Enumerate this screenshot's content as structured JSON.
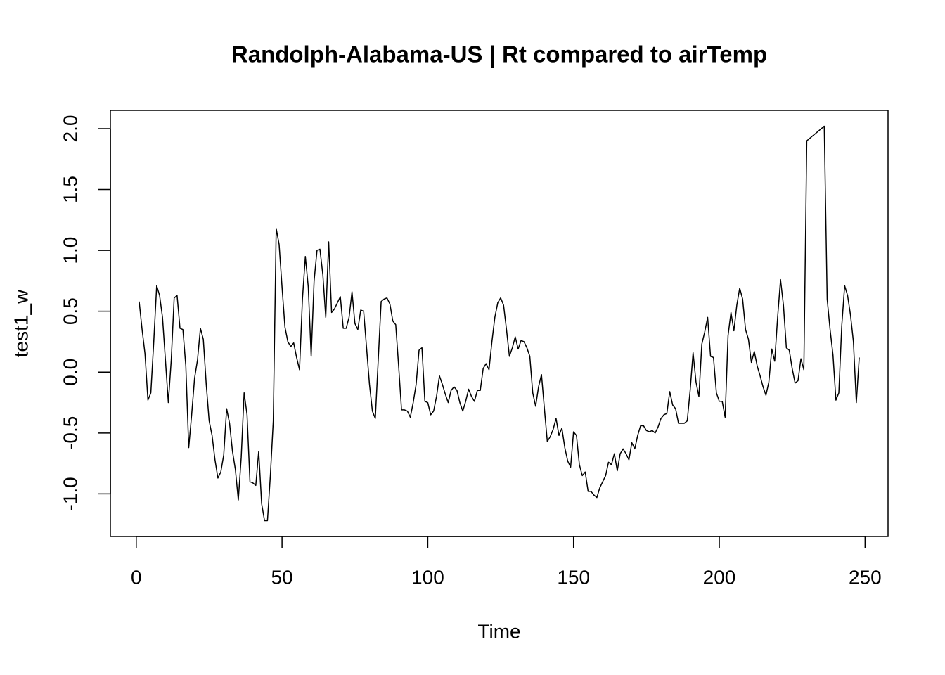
{
  "chart_data": {
    "type": "line",
    "title": "Randolph-Alabama-US | Rt compared to airTemp",
    "x_label": "Time",
    "y_label": "test1_w",
    "x": [
      1,
      2,
      3,
      4,
      5,
      6,
      7,
      8,
      9,
      10,
      11,
      12,
      13,
      14,
      15,
      16,
      17,
      18,
      19,
      20,
      21,
      22,
      23,
      24,
      25,
      26,
      27,
      28,
      29,
      30,
      31,
      32,
      33,
      34,
      35,
      36,
      37,
      38,
      39,
      40,
      41,
      42,
      43,
      44,
      45,
      46,
      47,
      48,
      49,
      50,
      51,
      52,
      53,
      54,
      55,
      56,
      57,
      58,
      59,
      60,
      61,
      62,
      63,
      64,
      65,
      66,
      67,
      68,
      69,
      70,
      71,
      72,
      73,
      74,
      75,
      76,
      77,
      78,
      79,
      80,
      81,
      82,
      83,
      84,
      85,
      86,
      87,
      88,
      89,
      90,
      91,
      92,
      93,
      94,
      95,
      96,
      97,
      98,
      99,
      100,
      101,
      102,
      103,
      104,
      105,
      106,
      107,
      108,
      109,
      110,
      111,
      112,
      113,
      114,
      115,
      116,
      117,
      118,
      119,
      120,
      121,
      122,
      123,
      124,
      125,
      126,
      127,
      128,
      129,
      130,
      131,
      132,
      133,
      134,
      135,
      136,
      137,
      138,
      139,
      140,
      141,
      142,
      143,
      144,
      145,
      146,
      147,
      148,
      149,
      150,
      151,
      152,
      153,
      154,
      155,
      156,
      157,
      158,
      159,
      160,
      161,
      162,
      163,
      164,
      165,
      166,
      167,
      168,
      169,
      170,
      171,
      172,
      173,
      174,
      175,
      176,
      177,
      178,
      179,
      180,
      181,
      182,
      183,
      184,
      185,
      186,
      187,
      188,
      189,
      190,
      191,
      192,
      193,
      194,
      195,
      196,
      197,
      198,
      199,
      200,
      201,
      202,
      203,
      204,
      205,
      206,
      207,
      208,
      209,
      210,
      211,
      212,
      213,
      214,
      215,
      216,
      217,
      218,
      219,
      220,
      221,
      222,
      223,
      224,
      225,
      226,
      227,
      228,
      229,
      230,
      231,
      232,
      233,
      234,
      235,
      236,
      237,
      238,
      239,
      240,
      241,
      242,
      243,
      244,
      245,
      246,
      247,
      248
    ],
    "series": [
      {
        "name": "test1_w",
        "color": "#000000",
        "values": [
          0.58,
          0.35,
          0.15,
          -0.23,
          -0.17,
          0.25,
          0.71,
          0.63,
          0.45,
          0.1,
          -0.25,
          0.1,
          0.61,
          0.63,
          0.36,
          0.35,
          0.05,
          -0.62,
          -0.35,
          -0.05,
          0.1,
          0.36,
          0.27,
          -0.1,
          -0.4,
          -0.52,
          -0.72,
          -0.87,
          -0.82,
          -0.68,
          -0.3,
          -0.42,
          -0.65,
          -0.8,
          -1.05,
          -0.7,
          -0.17,
          -0.35,
          -0.9,
          -0.91,
          -0.93,
          -0.65,
          -1.08,
          -1.22,
          -1.22,
          -0.85,
          -0.4,
          1.18,
          1.05,
          0.7,
          0.37,
          0.25,
          0.21,
          0.24,
          0.12,
          0.02,
          0.6,
          0.95,
          0.7,
          0.13,
          0.75,
          1.0,
          1.01,
          0.8,
          0.45,
          1.07,
          0.49,
          0.52,
          0.57,
          0.62,
          0.36,
          0.36,
          0.45,
          0.66,
          0.4,
          0.35,
          0.51,
          0.5,
          0.2,
          -0.1,
          -0.32,
          -0.38,
          0.1,
          0.58,
          0.6,
          0.61,
          0.56,
          0.42,
          0.39,
          0.05,
          -0.31,
          -0.31,
          -0.32,
          -0.37,
          -0.25,
          -0.1,
          0.18,
          0.2,
          -0.24,
          -0.25,
          -0.35,
          -0.32,
          -0.2,
          -0.03,
          -0.1,
          -0.18,
          -0.25,
          -0.15,
          -0.12,
          -0.15,
          -0.25,
          -0.32,
          -0.24,
          -0.14,
          -0.2,
          -0.24,
          -0.15,
          -0.15,
          0.03,
          0.07,
          0.02,
          0.25,
          0.45,
          0.57,
          0.61,
          0.55,
          0.35,
          0.13,
          0.2,
          0.29,
          0.19,
          0.26,
          0.25,
          0.2,
          0.13,
          -0.17,
          -0.28,
          -0.12,
          -0.02,
          -0.3,
          -0.57,
          -0.53,
          -0.47,
          -0.38,
          -0.52,
          -0.46,
          -0.62,
          -0.73,
          -0.78,
          -0.49,
          -0.52,
          -0.76,
          -0.85,
          -0.82,
          -0.98,
          -0.98,
          -1.01,
          -1.03,
          -0.95,
          -0.9,
          -0.85,
          -0.74,
          -0.76,
          -0.67,
          -0.81,
          -0.67,
          -0.63,
          -0.67,
          -0.72,
          -0.58,
          -0.63,
          -0.52,
          -0.44,
          -0.44,
          -0.48,
          -0.49,
          -0.48,
          -0.5,
          -0.45,
          -0.38,
          -0.35,
          -0.34,
          -0.16,
          -0.27,
          -0.3,
          -0.42,
          -0.42,
          -0.42,
          -0.4,
          -0.15,
          0.16,
          -0.08,
          -0.2,
          0.23,
          0.33,
          0.45,
          0.13,
          0.12,
          -0.17,
          -0.24,
          -0.24,
          -0.37,
          0.3,
          0.49,
          0.34,
          0.55,
          0.69,
          0.6,
          0.35,
          0.27,
          0.08,
          0.17,
          0.05,
          -0.03,
          -0.12,
          -0.19,
          -0.08,
          0.19,
          0.09,
          0.45,
          0.76,
          0.55,
          0.2,
          0.18,
          0.03,
          -0.09,
          -0.07,
          0.11,
          0.02,
          1.9,
          1.92,
          1.94,
          1.96,
          1.98,
          2.0,
          2.02,
          0.6,
          0.35,
          0.14,
          -0.23,
          -0.17,
          0.38,
          0.71,
          0.63,
          0.47,
          0.25,
          -0.25,
          0.12
        ]
      }
    ],
    "xlim": [
      -8.88,
      257.88
    ],
    "ylim": [
      -1.35,
      2.15
    ],
    "xticks": [
      0,
      50,
      100,
      150,
      200,
      250
    ],
    "yticks": [
      {
        "value": -1,
        "label": "-1.0"
      },
      -0.5,
      {
        "value": 0,
        "label": "0.0"
      },
      0.5,
      {
        "value": 1,
        "label": "1.0"
      },
      1.5,
      {
        "value": 2,
        "label": "2.0"
      }
    ],
    "grid": false
  }
}
